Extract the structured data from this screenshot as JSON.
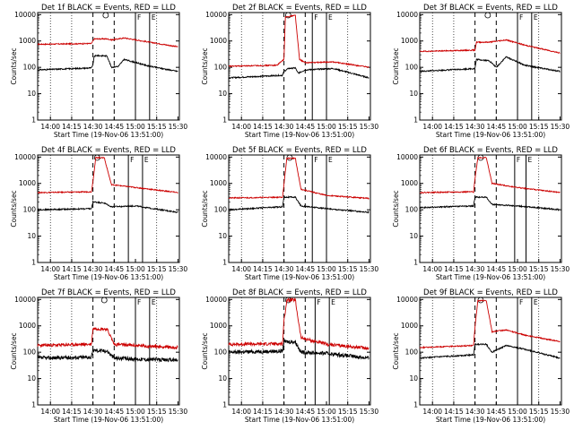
{
  "figure": {
    "background": "#ffffff",
    "event_color": "#000000",
    "lld_color": "#cc0000"
  },
  "chart_data": [
    {
      "type": "line",
      "title": "Det 1f BLACK = Events, RED = LLD",
      "xlabel": "Start Time (19-Nov-06 13:51:00)",
      "ylabel": "Counts/sec",
      "x_ticks": [
        "14:00",
        "14:15",
        "14:30",
        "14:45",
        "15:00",
        "15:15",
        "15:30"
      ],
      "y_ticks": [
        "1",
        "10",
        "100",
        "1000",
        "10000"
      ],
      "xlim": [
        "13:51",
        "15:31"
      ],
      "ylim": [
        1,
        12000
      ],
      "scale_y": "log",
      "markers": {
        "S": "14:39",
        "F": "15:00",
        "E": "15:10"
      },
      "series": [
        {
          "values": {
            "events": [
              [
                "13:51",
                80
              ],
              [
                "14:29",
                95
              ],
              [
                "14:30",
                130
              ],
              [
                "14:31",
                270
              ],
              [
                "14:33",
                280
              ],
              [
                "14:40",
                270
              ],
              [
                "14:43",
                100
              ],
              [
                "14:48",
                110
              ],
              [
                "14:52",
                200
              ],
              [
                "14:55",
                180
              ],
              [
                "15:10",
                110
              ],
              [
                "15:30",
                70
              ]
            ],
            "lld": [
              [
                "13:51",
                750
              ],
              [
                "14:29",
                800
              ],
              [
                "14:30",
                1000
              ],
              [
                "14:31",
                1200
              ],
              [
                "14:40",
                1200
              ],
              [
                "14:43",
                1100
              ],
              [
                "14:48",
                1200
              ],
              [
                "14:52",
                1300
              ],
              [
                "15:10",
                900
              ],
              [
                "15:30",
                600
              ]
            ]
          }
        }
      ]
    },
    {
      "type": "line",
      "title": "Det 2f BLACK = Events, RED = LLD",
      "xlabel": "Start Time (19-Nov-06 13:51:00)",
      "ylabel": "Counts/sec",
      "x_ticks": [
        "14:00",
        "14:15",
        "14:30",
        "14:45",
        "15:00",
        "15:15",
        "15:30"
      ],
      "y_ticks": [
        "1",
        "10",
        "100",
        "1000",
        "10000"
      ],
      "xlim": [
        "13:51",
        "15:31"
      ],
      "ylim": [
        1,
        12000
      ],
      "scale_y": "log",
      "markers": {
        "S": "14:33",
        "F": "14:50",
        "E": "15:00"
      },
      "series": [
        {
          "values": {
            "events": [
              [
                "13:51",
                40
              ],
              [
                "14:29",
                50
              ],
              [
                "14:30",
                70
              ],
              [
                "14:33",
                90
              ],
              [
                "14:38",
                95
              ],
              [
                "14:40",
                60
              ],
              [
                "14:45",
                80
              ],
              [
                "15:05",
                90
              ],
              [
                "15:30",
                40
              ]
            ],
            "lld": [
              [
                "13:51",
                110
              ],
              [
                "14:25",
                120
              ],
              [
                "14:30",
                200
              ],
              [
                "14:31",
                8000
              ],
              [
                "14:38",
                9500
              ],
              [
                "14:41",
                200
              ],
              [
                "14:45",
                150
              ],
              [
                "15:05",
                160
              ],
              [
                "15:30",
                100
              ]
            ]
          }
        }
      ]
    },
    {
      "type": "line",
      "title": "Det 3f BLACK = Events, RED = LLD",
      "xlabel": "Start Time (19-Nov-06 13:51:00)",
      "ylabel": "Counts/sec",
      "x_ticks": [
        "14:00",
        "14:15",
        "14:30",
        "14:45",
        "15:00",
        "15:15",
        "15:30"
      ],
      "y_ticks": [
        "1",
        "10",
        "100",
        "1000",
        "10000"
      ],
      "xlim": [
        "13:51",
        "15:31"
      ],
      "ylim": [
        1,
        12000
      ],
      "scale_y": "log",
      "markers": {
        "S": "14:39",
        "F": "15:00",
        "E": "15:10"
      },
      "series": [
        {
          "values": {
            "events": [
              [
                "13:51",
                70
              ],
              [
                "14:30",
                90
              ],
              [
                "14:31",
                200
              ],
              [
                "14:40",
                180
              ],
              [
                "14:45",
                100
              ],
              [
                "14:52",
                250
              ],
              [
                "15:05",
                120
              ],
              [
                "15:30",
                70
              ]
            ],
            "lld": [
              [
                "13:51",
                400
              ],
              [
                "14:30",
                450
              ],
              [
                "14:31",
                900
              ],
              [
                "14:40",
                900
              ],
              [
                "14:52",
                1100
              ],
              [
                "15:05",
                700
              ],
              [
                "15:30",
                350
              ]
            ]
          }
        }
      ]
    },
    {
      "type": "line",
      "title": "Det 4f BLACK = Events, RED = LLD",
      "xlabel": "Start Time (19-Nov-06 13:51:00)",
      "ylabel": "Counts/sec",
      "x_ticks": [
        "14:00",
        "14:15",
        "14:30",
        "14:45",
        "15:00",
        "15:15",
        "15:30"
      ],
      "y_ticks": [
        "1",
        "10",
        "100",
        "1000",
        "10000"
      ],
      "xlim": [
        "13:51",
        "15:31"
      ],
      "ylim": [
        1,
        12000
      ],
      "scale_y": "log",
      "markers": {
        "S": "14:33",
        "F": "14:55",
        "E": "15:05"
      },
      "series": [
        {
          "values": {
            "events": [
              [
                "13:51",
                100
              ],
              [
                "14:29",
                110
              ],
              [
                "14:30",
                200
              ],
              [
                "14:38",
                180
              ],
              [
                "14:43",
                130
              ],
              [
                "15:00",
                140
              ],
              [
                "15:30",
                80
              ]
            ],
            "lld": [
              [
                "13:51",
                450
              ],
              [
                "14:29",
                480
              ],
              [
                "14:30",
                1200
              ],
              [
                "14:32",
                9500
              ],
              [
                "14:38",
                9500
              ],
              [
                "14:43",
                900
              ],
              [
                "15:00",
                700
              ],
              [
                "15:30",
                450
              ]
            ]
          }
        }
      ]
    },
    {
      "type": "line",
      "title": "Det 5f BLACK = Events, RED = LLD",
      "xlabel": "Start Time (19-Nov-06 13:51:00)",
      "ylabel": "Counts/sec",
      "x_ticks": [
        "14:00",
        "14:15",
        "14:30",
        "14:45",
        "15:00",
        "15:15",
        "15:30"
      ],
      "y_ticks": [
        "1",
        "10",
        "100",
        "1000",
        "10000"
      ],
      "xlim": [
        "13:51",
        "15:31"
      ],
      "ylim": [
        1,
        12000
      ],
      "scale_y": "log",
      "markers": {
        "S": "14:34",
        "F": "14:50",
        "E": "15:00"
      },
      "series": [
        {
          "values": {
            "events": [
              [
                "13:51",
                100
              ],
              [
                "14:29",
                130
              ],
              [
                "14:30",
                300
              ],
              [
                "14:38",
                300
              ],
              [
                "14:42",
                140
              ],
              [
                "15:00",
                110
              ],
              [
                "15:30",
                80
              ]
            ],
            "lld": [
              [
                "13:51",
                280
              ],
              [
                "14:29",
                300
              ],
              [
                "14:30",
                900
              ],
              [
                "14:32",
                9000
              ],
              [
                "14:38",
                9000
              ],
              [
                "14:42",
                600
              ],
              [
                "15:00",
                350
              ],
              [
                "15:30",
                270
              ]
            ]
          }
        }
      ]
    },
    {
      "type": "line",
      "title": "Det 6f BLACK = Events, RED = LLD",
      "xlabel": "Start Time (19-Nov-06 13:51:00)",
      "ylabel": "Counts/sec",
      "x_ticks": [
        "14:00",
        "14:15",
        "14:30",
        "14:45",
        "15:00",
        "15:15",
        "15:30"
      ],
      "y_ticks": [
        "1",
        "10",
        "100",
        "1000",
        "10000"
      ],
      "xlim": [
        "13:51",
        "15:31"
      ],
      "ylim": [
        1,
        12000
      ],
      "scale_y": "log",
      "markers": {
        "S": "14:34",
        "F": "14:58",
        "E": "15:06"
      },
      "series": [
        {
          "values": {
            "events": [
              [
                "13:51",
                120
              ],
              [
                "14:29",
                140
              ],
              [
                "14:30",
                300
              ],
              [
                "14:38",
                300
              ],
              [
                "14:42",
                160
              ],
              [
                "15:00",
                140
              ],
              [
                "15:30",
                100
              ]
            ],
            "lld": [
              [
                "13:51",
                450
              ],
              [
                "14:29",
                480
              ],
              [
                "14:30",
                1500
              ],
              [
                "14:32",
                9500
              ],
              [
                "14:38",
                9500
              ],
              [
                "14:42",
                1000
              ],
              [
                "15:00",
                700
              ],
              [
                "15:30",
                450
              ]
            ]
          }
        }
      ]
    },
    {
      "type": "line",
      "title": "Det 7f BLACK = Events, RED = LLD",
      "xlabel": "Start Time (19-Nov-06 13:51:00)",
      "ylabel": "Counts/sec",
      "x_ticks": [
        "14:00",
        "14:15",
        "14:30",
        "14:45",
        "15:00",
        "15:15",
        "15:30"
      ],
      "y_ticks": [
        "1",
        "10",
        "100",
        "1000",
        "10000"
      ],
      "xlim": [
        "13:51",
        "15:31"
      ],
      "ylim": [
        1,
        12000
      ],
      "scale_y": "log",
      "markers": {
        "S": "14:38",
        "F": "15:00",
        "E": "15:10"
      },
      "series": [
        {
          "values": {
            "events": [
              [
                "13:51",
                60
              ],
              [
                "14:29",
                65
              ],
              [
                "14:30",
                120
              ],
              [
                "14:40",
                110
              ],
              [
                "14:45",
                60
              ],
              [
                "15:00",
                55
              ],
              [
                "15:30",
                50
              ]
            ],
            "lld": [
              [
                "13:51",
                180
              ],
              [
                "14:29",
                200
              ],
              [
                "14:30",
                800
              ],
              [
                "14:40",
                750
              ],
              [
                "14:45",
                200
              ],
              [
                "15:00",
                180
              ],
              [
                "15:30",
                150
              ]
            ]
          }
        }
      ]
    },
    {
      "type": "line",
      "title": "Det 8f BLACK = Events, RED = LLD",
      "xlabel": "Start Time (19-Nov-06 13:51:00)",
      "ylabel": "Counts/sec",
      "x_ticks": [
        "14:00",
        "14:15",
        "14:30",
        "14:45",
        "15:00",
        "15:15",
        "15:30"
      ],
      "y_ticks": [
        "1",
        "10",
        "100",
        "1000",
        "10000"
      ],
      "xlim": [
        "13:51",
        "15:31"
      ],
      "ylim": [
        1,
        12000
      ],
      "scale_y": "log",
      "markers": {
        "S": "14:33",
        "F": "14:52",
        "E": "15:02"
      },
      "series": [
        {
          "values": {
            "events": [
              [
                "13:51",
                100
              ],
              [
                "14:29",
                110
              ],
              [
                "14:30",
                250
              ],
              [
                "14:38",
                250
              ],
              [
                "14:42",
                100
              ],
              [
                "15:00",
                90
              ],
              [
                "15:30",
                60
              ]
            ],
            "lld": [
              [
                "13:51",
                200
              ],
              [
                "14:29",
                210
              ],
              [
                "14:30",
                1500
              ],
              [
                "14:32",
                9500
              ],
              [
                "14:38",
                9500
              ],
              [
                "14:42",
                350
              ],
              [
                "15:00",
                200
              ],
              [
                "15:30",
                140
              ]
            ]
          }
        }
      ]
    },
    {
      "type": "line",
      "title": "Det 9f BLACK = Events, RED = LLD",
      "xlabel": "Start Time (19-Nov-06 13:51:00)",
      "ylabel": "Counts/sec",
      "x_ticks": [
        "14:00",
        "14:15",
        "14:30",
        "14:45",
        "15:00",
        "15:15",
        "15:30"
      ],
      "y_ticks": [
        "1",
        "10",
        "100",
        "1000",
        "10000"
      ],
      "xlim": [
        "13:51",
        "15:31"
      ],
      "ylim": [
        1,
        12000
      ],
      "scale_y": "log",
      "markers": {
        "S": "14:34",
        "F": "15:00",
        "E": "15:10"
      },
      "series": [
        {
          "values": {
            "events": [
              [
                "13:51",
                60
              ],
              [
                "14:29",
                80
              ],
              [
                "14:30",
                200
              ],
              [
                "14:38",
                200
              ],
              [
                "14:42",
                100
              ],
              [
                "14:52",
                180
              ],
              [
                "15:05",
                130
              ],
              [
                "15:30",
                60
              ]
            ],
            "lld": [
              [
                "13:51",
                150
              ],
              [
                "14:29",
                180
              ],
              [
                "14:30",
                900
              ],
              [
                "14:32",
                9000
              ],
              [
                "14:38",
                9000
              ],
              [
                "14:42",
                600
              ],
              [
                "14:52",
                700
              ],
              [
                "15:05",
                450
              ],
              [
                "15:30",
                250
              ]
            ]
          }
        }
      ]
    }
  ]
}
